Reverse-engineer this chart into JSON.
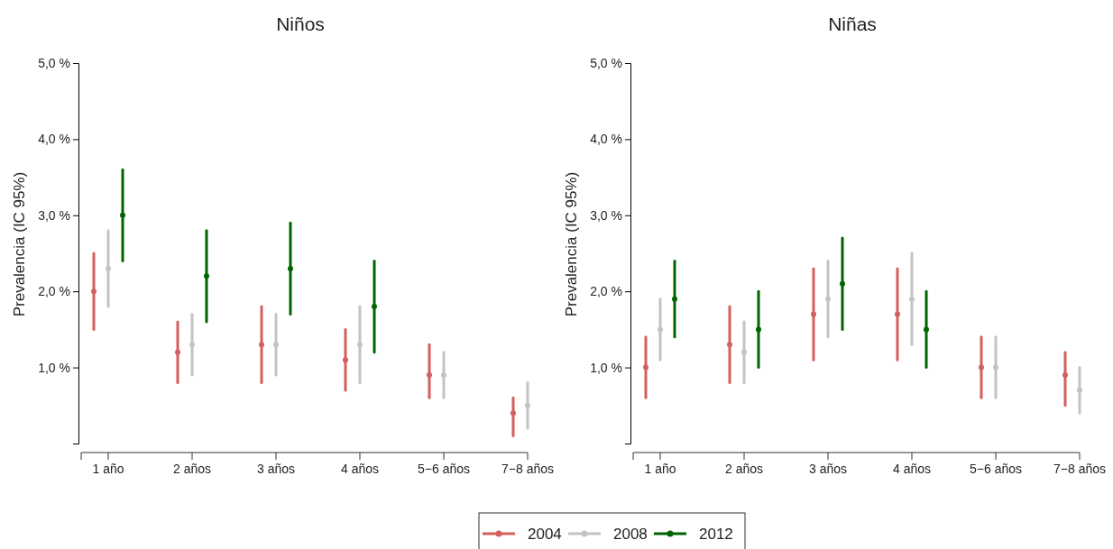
{
  "chart_data": [
    {
      "type": "scatter",
      "title": "Niños",
      "ylabel": "Prevalencia (IC 95%)",
      "categories": [
        "1 año",
        "2 años",
        "3 años",
        "4 años",
        "5−6 años",
        "7−8 años"
      ],
      "ylim": [
        0,
        5
      ],
      "yticks": [
        {
          "value": 0,
          "label": null
        },
        {
          "value": 1,
          "label": "1,0 %"
        },
        {
          "value": 2,
          "label": "2,0 %"
        },
        {
          "value": 3,
          "label": "3,0 %"
        },
        {
          "value": 4,
          "label": "4,0 %"
        },
        {
          "value": 5,
          "label": "5,0 %"
        }
      ],
      "marker": "circle",
      "grid": false,
      "series": [
        {
          "color": "#d45f5f",
          "values": [
            2.0,
            1.2,
            1.3,
            1.1,
            0.9,
            0.4
          ],
          "errors": [
            [
              1.5,
              2.5
            ],
            [
              0.8,
              1.6
            ],
            [
              0.8,
              1.8
            ],
            [
              0.7,
              1.5
            ],
            [
              0.6,
              1.3
            ],
            [
              0.1,
              0.6
            ]
          ]
        },
        {
          "color": "#c3c3c3",
          "values": [
            2.3,
            1.3,
            1.3,
            1.3,
            0.9,
            0.5
          ],
          "errors": [
            [
              1.8,
              2.8
            ],
            [
              0.9,
              1.7
            ],
            [
              0.9,
              1.7
            ],
            [
              0.8,
              1.8
            ],
            [
              0.6,
              1.2
            ],
            [
              0.2,
              0.8
            ]
          ]
        },
        {
          "color": "#006400",
          "values": [
            3.0,
            2.2,
            2.3,
            1.8,
            null,
            null
          ],
          "errors": [
            [
              2.4,
              3.6
            ],
            [
              1.6,
              2.8
            ],
            [
              1.7,
              2.9
            ],
            [
              1.2,
              2.4
            ],
            null,
            null
          ]
        }
      ]
    },
    {
      "type": "scatter",
      "title": "Niñas",
      "ylabel": "Prevalencia (IC 95%)",
      "categories": [
        "1 año",
        "2 años",
        "3 años",
        "4 años",
        "5−6 años",
        "7−8 años"
      ],
      "ylim": [
        0,
        5
      ],
      "yticks": [
        {
          "value": 0,
          "label": null
        },
        {
          "value": 1,
          "label": "1,0 %"
        },
        {
          "value": 2,
          "label": "2,0 %"
        },
        {
          "value": 3,
          "label": "3,0 %"
        },
        {
          "value": 4,
          "label": "4,0 %"
        },
        {
          "value": 5,
          "label": "5,0 %"
        }
      ],
      "marker": "circle",
      "grid": false,
      "legend": "bottom",
      "series": [
        {
          "name": "2004",
          "color": "#d45f5f",
          "values": [
            1.0,
            1.3,
            1.7,
            1.7,
            1.0,
            0.9
          ],
          "errors": [
            [
              0.6,
              1.4
            ],
            [
              0.8,
              1.8
            ],
            [
              1.1,
              2.3
            ],
            [
              1.1,
              2.3
            ],
            [
              0.6,
              1.4
            ],
            [
              0.5,
              1.2
            ]
          ]
        },
        {
          "name": "2008",
          "color": "#c3c3c3",
          "values": [
            1.5,
            1.2,
            1.9,
            1.9,
            1.0,
            0.7
          ],
          "errors": [
            [
              1.1,
              1.9
            ],
            [
              0.8,
              1.6
            ],
            [
              1.4,
              2.4
            ],
            [
              1.3,
              2.5
            ],
            [
              0.6,
              1.4
            ],
            [
              0.4,
              1.0
            ]
          ]
        },
        {
          "name": "2012",
          "color": "#006400",
          "values": [
            1.9,
            1.5,
            2.1,
            1.5,
            null,
            null
          ],
          "errors": [
            [
              1.4,
              2.4
            ],
            [
              1.0,
              2.0
            ],
            [
              1.5,
              2.7
            ],
            [
              1.0,
              2.0
            ],
            null,
            null
          ]
        }
      ]
    }
  ]
}
